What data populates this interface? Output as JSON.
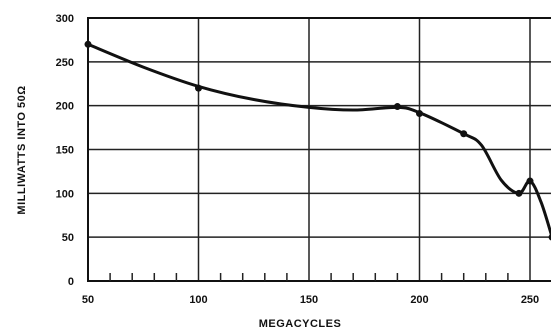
{
  "chart_data": {
    "type": "line",
    "title": "",
    "xlabel": "MEGACYCLES",
    "ylabel": "MILLIWATTS INTO 50Ω",
    "xlim": [
      50,
      260
    ],
    "ylim": [
      0,
      300
    ],
    "x_ticks": [
      50,
      100,
      150,
      200,
      250
    ],
    "y_ticks": [
      0,
      50,
      100,
      150,
      200,
      250,
      300
    ],
    "grid": true,
    "series": [
      {
        "curve": [
          {
            "x": 50,
            "y": 270
          },
          {
            "x": 75,
            "y": 244
          },
          {
            "x": 100,
            "y": 222
          },
          {
            "x": 125,
            "y": 207
          },
          {
            "x": 150,
            "y": 198
          },
          {
            "x": 170,
            "y": 195
          },
          {
            "x": 190,
            "y": 198
          },
          {
            "x": 200,
            "y": 192
          },
          {
            "x": 220,
            "y": 168
          },
          {
            "x": 228,
            "y": 155
          },
          {
            "x": 237,
            "y": 115
          },
          {
            "x": 245,
            "y": 100
          },
          {
            "x": 250,
            "y": 114
          },
          {
            "x": 255,
            "y": 90
          },
          {
            "x": 260,
            "y": 50
          }
        ],
        "points": [
          {
            "x": 50,
            "y": 270
          },
          {
            "x": 100,
            "y": 220
          },
          {
            "x": 190,
            "y": 199
          },
          {
            "x": 200,
            "y": 191
          },
          {
            "x": 220,
            "y": 168
          },
          {
            "x": 245,
            "y": 100
          },
          {
            "x": 250,
            "y": 114
          },
          {
            "x": 260,
            "y": 50
          }
        ]
      }
    ]
  }
}
